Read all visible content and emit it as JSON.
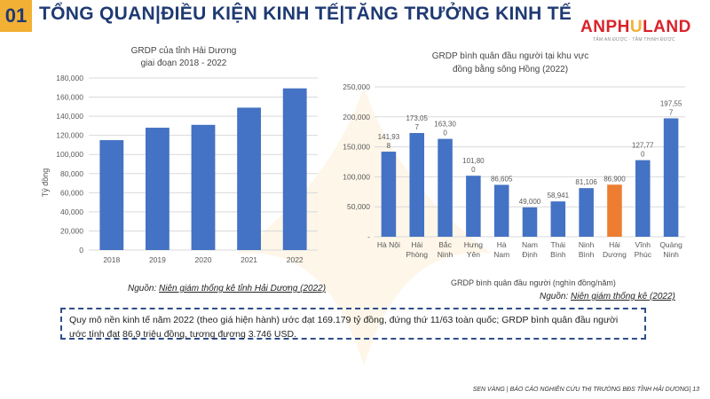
{
  "header": {
    "number": "01",
    "title": "TỔNG QUAN|ĐIỀU KIỆN KINH TẾ|TĂNG TRƯỞNG KINH TẾ"
  },
  "logo": {
    "part1": "ANPH",
    "mark": "U",
    "part2": "LAND",
    "tagline": "TÂM AN ĐƯỢC · TẦM THỊNH ĐƯỢC"
  },
  "sources": {
    "left_prefix": "Nguồn: ",
    "left_link": "Niên giám thống kê tỉnh Hải Dương (2022)",
    "right_prefix": "Nguồn: ",
    "right_link": "Niên giám thống kê (2022)"
  },
  "note": "Quy mô nền kinh tế năm 2022 (theo giá hiện hành) ước đạt 169.179 tỷ đồng, đứng thứ 11/63 toàn quốc; GRDP bình quân đầu người ước tính đạt 86,9 triệu đồng, tương đương 3.746 USD.",
  "footer": "SEN VÀNG | BÁO CÁO NGHIÊN CỨU THỊ TRƯỜNG BĐS TỈNH HẢI DƯƠNG| 13",
  "colors": {
    "bar": "#4472c4",
    "highlight": "#ed7d31",
    "title": "#1f3a73",
    "accent": "#f2b134"
  },
  "chart_data": [
    {
      "type": "bar",
      "title": "GRDP của tỉnh Hải Dương",
      "subtitle": "giai đoạn 2018 - 2022",
      "xlabel": "",
      "ylabel": "Tỷ đồng",
      "categories": [
        "2018",
        "2019",
        "2020",
        "2021",
        "2022"
      ],
      "values": [
        115000,
        128000,
        131000,
        149000,
        169179
      ],
      "ylim": [
        0,
        180000
      ],
      "yticks": [
        "0",
        "20,000",
        "40,000",
        "60,000",
        "80,000",
        "100,000",
        "120,000",
        "140,000",
        "160,000",
        "180,000"
      ],
      "grid": true
    },
    {
      "type": "bar",
      "title": "GRDP bình quân đầu người tại khu vực",
      "subtitle": "đồng bằng sông Hồng (2022)",
      "xlabel": "GRDP bình quân đầu người (nghìn đồng/năm)",
      "ylabel": "",
      "categories": [
        [
          "Hà Nội"
        ],
        [
          "Hải",
          "Phòng"
        ],
        [
          "Bắc",
          "Ninh"
        ],
        [
          "Hưng",
          "Yên"
        ],
        [
          "Hà",
          "Nam"
        ],
        [
          "Nam",
          "Định"
        ],
        [
          "Thái",
          "Bình"
        ],
        [
          "Ninh",
          "Bình"
        ],
        [
          "Hải",
          "Dương"
        ],
        [
          "Vĩnh",
          "Phúc"
        ],
        [
          "Quảng",
          "Ninh"
        ]
      ],
      "values": [
        141938,
        173057,
        163300,
        101800,
        86605,
        49000,
        58941,
        81106,
        86900,
        127770,
        197557
      ],
      "data_labels": [
        [
          "141,93",
          "8"
        ],
        [
          "173,05",
          "7"
        ],
        [
          "163,30",
          "0"
        ],
        [
          "101,80",
          "0"
        ],
        [
          "86,605"
        ],
        [
          "49,000"
        ],
        [
          "58,941"
        ],
        [
          "81,106"
        ],
        [
          "86,900"
        ],
        [
          "127,77",
          "0"
        ],
        [
          "197,55",
          "7"
        ]
      ],
      "highlight_index": 8,
      "ylim": [
        0,
        250000
      ],
      "yticks": [
        "-",
        "50,000",
        "100,000",
        "150,000",
        "200,000",
        "250,000"
      ],
      "grid": true
    }
  ]
}
